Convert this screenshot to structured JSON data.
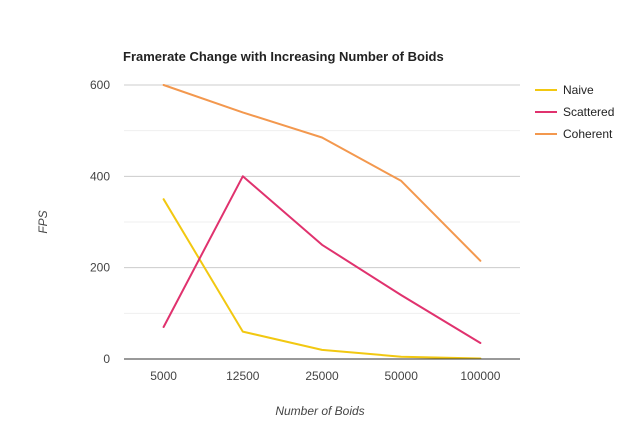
{
  "chart_data": {
    "type": "line",
    "title": "Framerate Change with Increasing Number of Boids",
    "xlabel": "Number of Boids",
    "ylabel": "FPS",
    "categories": [
      "5000",
      "12500",
      "25000",
      "50000",
      "100000"
    ],
    "ylim": [
      0,
      600
    ],
    "yticks": [
      0,
      200,
      400,
      600
    ],
    "grid": true,
    "legend_position": "right",
    "series": [
      {
        "name": "Naive",
        "color": "#f2c811",
        "values": [
          350,
          60,
          20,
          5,
          1
        ]
      },
      {
        "name": "Scattered",
        "color": "#e0326e",
        "values": [
          70,
          400,
          250,
          140,
          35
        ]
      },
      {
        "name": "Coherent",
        "color": "#f3984e",
        "values": [
          600,
          540,
          485,
          390,
          215
        ]
      }
    ]
  }
}
